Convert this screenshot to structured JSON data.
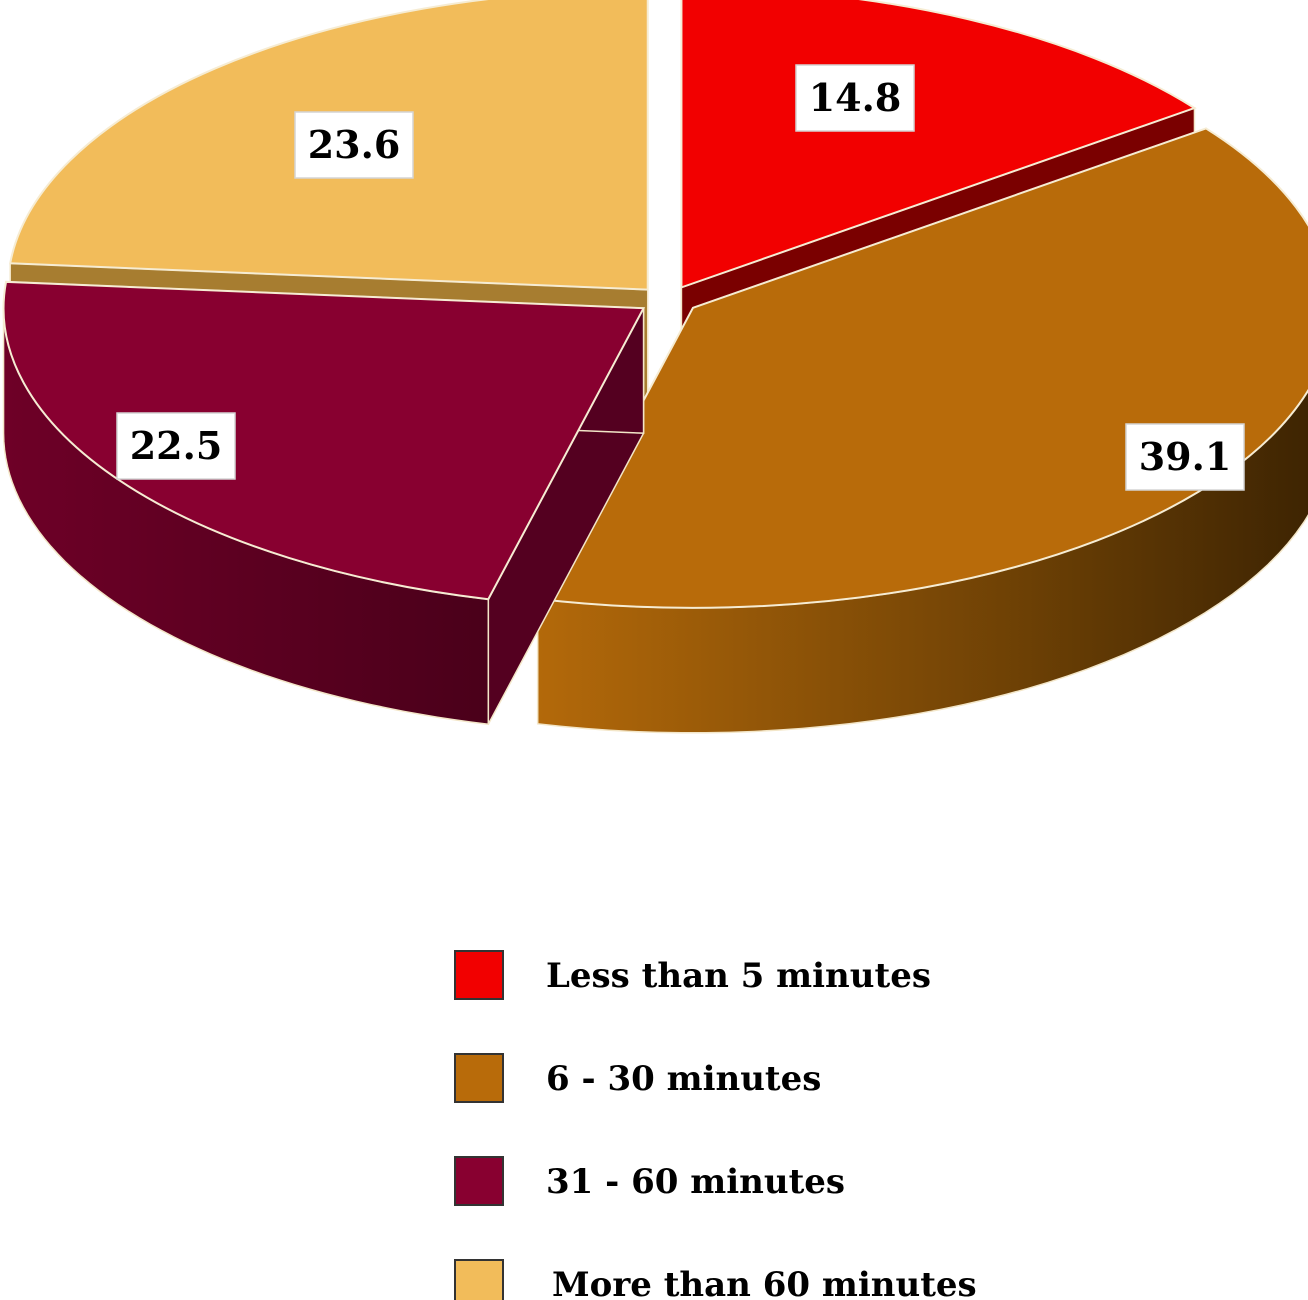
{
  "chart_data": {
    "type": "pie",
    "style": "3d-exploded",
    "title": "",
    "categories": [
      "Less than 5 minutes",
      "6 - 30 minutes",
      "31 - 60 minutes",
      "More than 60 minutes"
    ],
    "values": [
      14.8,
      39.1,
      22.5,
      23.6
    ],
    "data_labels": [
      "14.8",
      "39.1",
      "22.5",
      "23.6"
    ],
    "colors": [
      "#f20000",
      "#b86b0a",
      "#880030",
      "#f2bc5a"
    ],
    "side_colors": [
      "#7a0000",
      "#4d2e04",
      "#540020",
      "#a77d30"
    ],
    "start_angle_deg": 0,
    "direction": "clockwise",
    "legend_position": "bottom"
  }
}
